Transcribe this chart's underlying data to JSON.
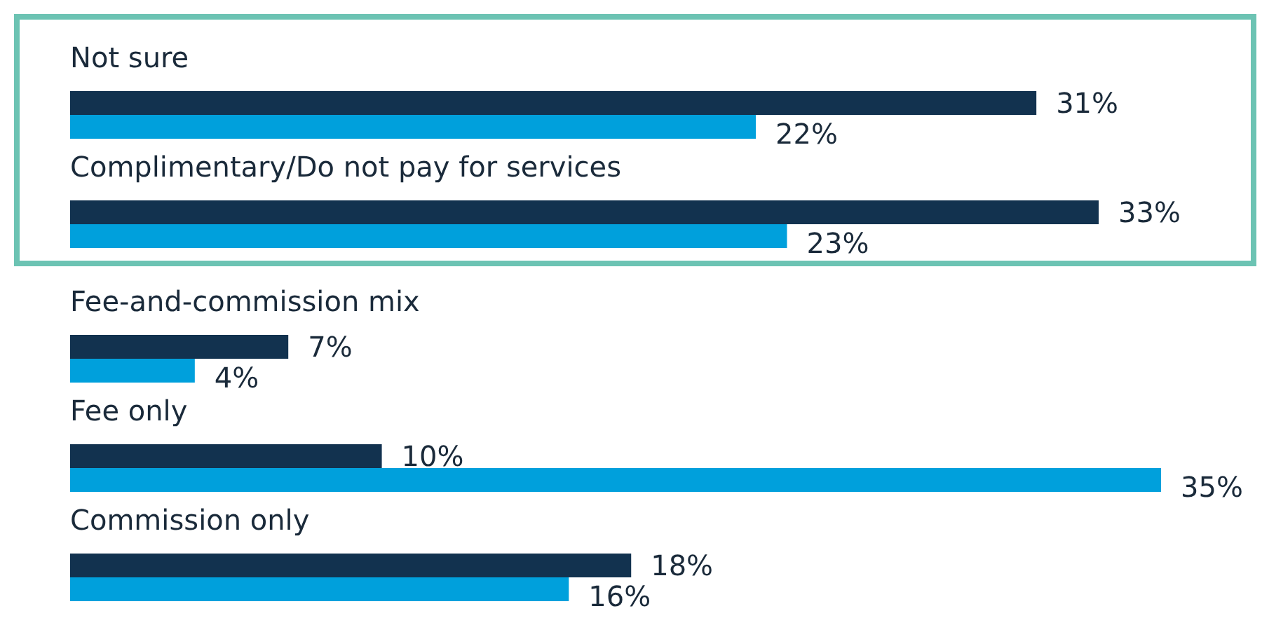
{
  "chart_data": {
    "type": "bar",
    "orientation": "horizontal",
    "categories": [
      "Not sure",
      "Complimentary/Do not pay for services",
      "Fee-and-commission mix",
      "Fee only",
      "Commission only"
    ],
    "series": [
      {
        "color": "#12324f",
        "values": [
          31,
          33,
          7,
          10,
          18
        ],
        "value_labels": [
          "31%",
          "33%",
          "7%",
          "10%",
          "18%"
        ]
      },
      {
        "color": "#00a0dc",
        "values": [
          22,
          23,
          4,
          35,
          16
        ],
        "value_labels": [
          "22%",
          "23%",
          "4%",
          "35%",
          "16%"
        ]
      }
    ],
    "data_labels": true
  }
}
